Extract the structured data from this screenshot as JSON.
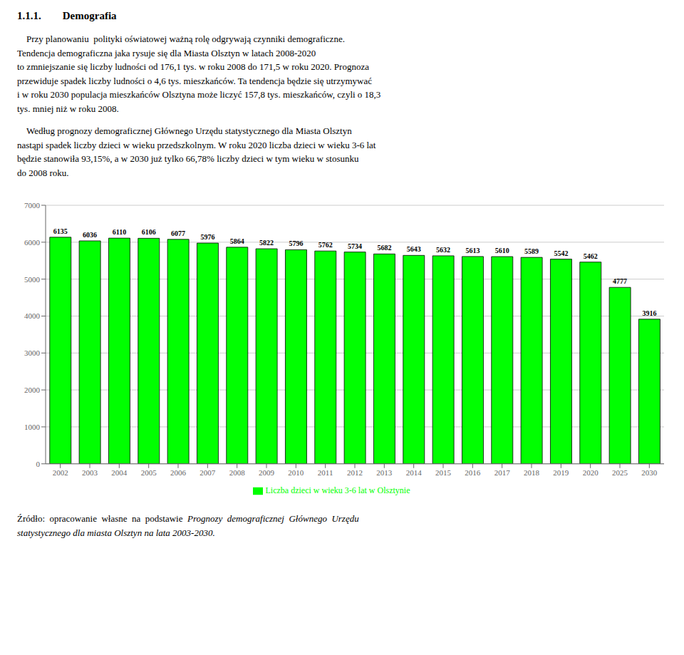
{
  "chart_data": {
    "type": "bar",
    "title": "1.1.1.        Demografia",
    "annotations": [
      "    Przy planowaniu  polityki oświatowej ważną rolę odgrywają czynniki demograficzne.\nTendencja demograficzna jaka rysuje się dla Miasta Olsztyn w latach 2008-2020\nto zmniejszanie się liczby ludności od 176,1 tys. w roku 2008 do 171,5 w roku 2020. Prognoza\nprzewiduje spadek liczby ludności o 4,6 tys. mieszkańców. Ta tendencja będzie się utrzymywać\ni w roku 2030 populacja mieszkańców Olsztyna może liczyć 157,8 tys. mieszkańców, czyli o 18,3\ntys. mniej niż w roku 2008.",
      "    Według prognozy demograficznej Głównego Urzędu statystycznego dla Miasta Olsztyn\nnastąpi spadek liczby dzieci w wieku przedszkolnym. W roku 2020 liczba dzieci w wieku 3-6 lat\nbędzie stanowiła 93,15%, a w 2030 już tylko 66,78% liczby dzieci w tym wieku w stosunku\ndo 2008 roku.",
      "Źródło:  opracowanie  własne  na  podstawie  ",
      "Prognozy  demograficznej  Głównego  Urzędu\nstatystycznego dla miasta Olsztyn na lata 2003-2030."
    ],
    "categories": [
      "2002",
      "2003",
      "2004",
      "2005",
      "2006",
      "2007",
      "2008",
      "2009",
      "2010",
      "2011",
      "2012",
      "2013",
      "2014",
      "2015",
      "2016",
      "2017",
      "2018",
      "2019",
      "2020",
      "2025",
      "2030"
    ],
    "series": [
      {
        "name": "Liczba dzieci w wieku 3-6 lat w Olsztynie",
        "color": "#00FF00",
        "values": [
          6135,
          6036,
          6110,
          6106,
          6077,
          5976,
          5864,
          5822,
          5796,
          5762,
          5734,
          5682,
          5643,
          5632,
          5613,
          5610,
          5589,
          5542,
          5462,
          4777,
          3916
        ]
      }
    ],
    "ylim": [
      0,
      7000
    ],
    "yticks": [
      0,
      1000,
      2000,
      3000,
      4000,
      5000,
      6000,
      7000
    ],
    "grid": true,
    "legend": "bottom",
    "data_labels": true
  }
}
